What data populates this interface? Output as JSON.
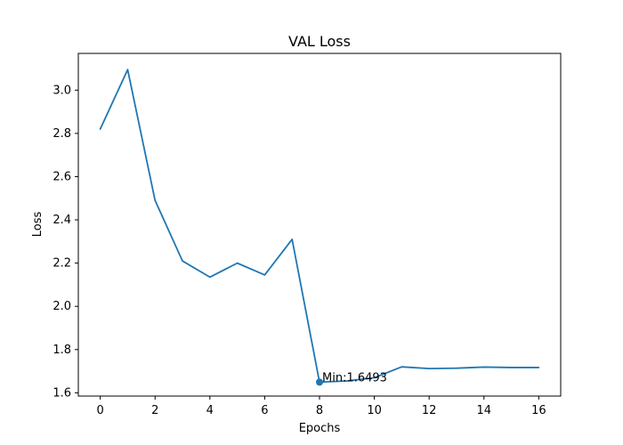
{
  "chart_data": {
    "type": "line",
    "title": "VAL Loss",
    "xlabel": "Epochs",
    "ylabel": "Loss",
    "x": [
      0,
      1,
      2,
      3,
      4,
      5,
      6,
      7,
      8,
      9,
      10,
      11,
      12,
      13,
      14,
      15,
      16
    ],
    "series": [
      {
        "values": [
          2.82,
          3.095,
          2.49,
          2.21,
          2.135,
          2.2,
          2.145,
          2.31,
          1.6493,
          1.655,
          1.67,
          1.72,
          1.712,
          1.714,
          1.719,
          1.717,
          1.717
        ],
        "color": "#1f77b4"
      }
    ],
    "xlim": [
      -0.8,
      16.8
    ],
    "ylim": [
      1.585,
      3.17
    ],
    "xticks": [
      0,
      2,
      4,
      6,
      8,
      10,
      12,
      14,
      16
    ],
    "yticks": [
      1.6,
      1.8,
      2.0,
      2.2,
      2.4,
      2.6,
      2.8,
      3.0
    ],
    "ytick_labels": [
      "1.6",
      "1.8",
      "2.0",
      "2.2",
      "2.4",
      "2.6",
      "2.8",
      "3.0"
    ],
    "grid": false,
    "annotation": {
      "text": "Min:1.6493",
      "x": 8,
      "y": 1.6493
    }
  }
}
